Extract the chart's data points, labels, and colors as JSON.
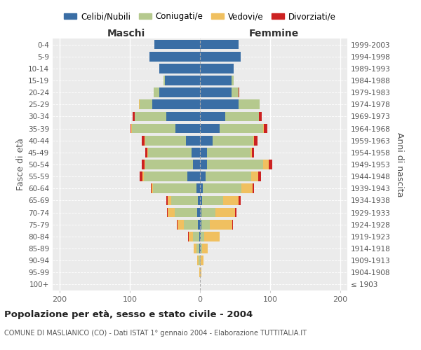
{
  "age_groups": [
    "100+",
    "95-99",
    "90-94",
    "85-89",
    "80-84",
    "75-79",
    "70-74",
    "65-69",
    "60-64",
    "55-59",
    "50-54",
    "45-49",
    "40-44",
    "35-39",
    "30-34",
    "25-29",
    "20-24",
    "15-19",
    "10-14",
    "5-9",
    "0-4"
  ],
  "birth_years": [
    "≤ 1903",
    "1904-1908",
    "1909-1913",
    "1914-1918",
    "1919-1923",
    "1924-1928",
    "1929-1933",
    "1934-1938",
    "1939-1943",
    "1944-1948",
    "1949-1953",
    "1954-1958",
    "1959-1963",
    "1964-1968",
    "1969-1973",
    "1974-1978",
    "1979-1983",
    "1984-1988",
    "1989-1993",
    "1994-1998",
    "1999-2003"
  ],
  "colors": {
    "celibi": "#3a6ea5",
    "coniugati": "#b5c98e",
    "vedovi": "#f0c060",
    "divorziati": "#cc2222"
  },
  "males": {
    "celibi": [
      0,
      0,
      0,
      1,
      1,
      3,
      4,
      3,
      5,
      18,
      10,
      12,
      20,
      35,
      48,
      68,
      58,
      50,
      58,
      72,
      65
    ],
    "coniugati": [
      0,
      0,
      2,
      4,
      9,
      20,
      32,
      38,
      62,
      62,
      68,
      62,
      58,
      62,
      45,
      18,
      8,
      2,
      0,
      0,
      0
    ],
    "vedovi": [
      0,
      1,
      2,
      4,
      6,
      9,
      10,
      5,
      2,
      2,
      1,
      1,
      1,
      1,
      0,
      1,
      0,
      0,
      0,
      0,
      0
    ],
    "divorziati": [
      0,
      0,
      0,
      0,
      1,
      1,
      1,
      2,
      1,
      4,
      4,
      3,
      4,
      1,
      3,
      0,
      0,
      0,
      0,
      0,
      0
    ]
  },
  "females": {
    "celibi": [
      0,
      0,
      0,
      1,
      1,
      2,
      2,
      3,
      4,
      8,
      10,
      10,
      18,
      28,
      36,
      55,
      45,
      45,
      48,
      58,
      55
    ],
    "coniugati": [
      0,
      0,
      1,
      2,
      5,
      12,
      20,
      30,
      55,
      65,
      80,
      62,
      58,
      62,
      48,
      30,
      10,
      3,
      0,
      0,
      0
    ],
    "vedovi": [
      0,
      2,
      4,
      8,
      22,
      32,
      28,
      22,
      16,
      10,
      8,
      2,
      1,
      1,
      0,
      0,
      0,
      0,
      0,
      0,
      0
    ],
    "divorziati": [
      0,
      0,
      0,
      0,
      0,
      1,
      2,
      3,
      2,
      4,
      5,
      3,
      5,
      5,
      4,
      0,
      1,
      0,
      0,
      0,
      0
    ]
  },
  "title": "Popolazione per età, sesso e stato civile - 2004",
  "subtitle": "COMUNE DI MASLIANICO (CO) - Dati ISTAT 1° gennaio 2004 - Elaborazione TUTTITALIA.IT",
  "xlabel_left": "Maschi",
  "xlabel_right": "Femmine",
  "ylabel_left": "Fasce di età",
  "ylabel_right": "Anni di nascita",
  "xlim": 210,
  "legend_labels": [
    "Celibi/Nubili",
    "Coniugati/e",
    "Vedovi/e",
    "Divorziati/e"
  ]
}
